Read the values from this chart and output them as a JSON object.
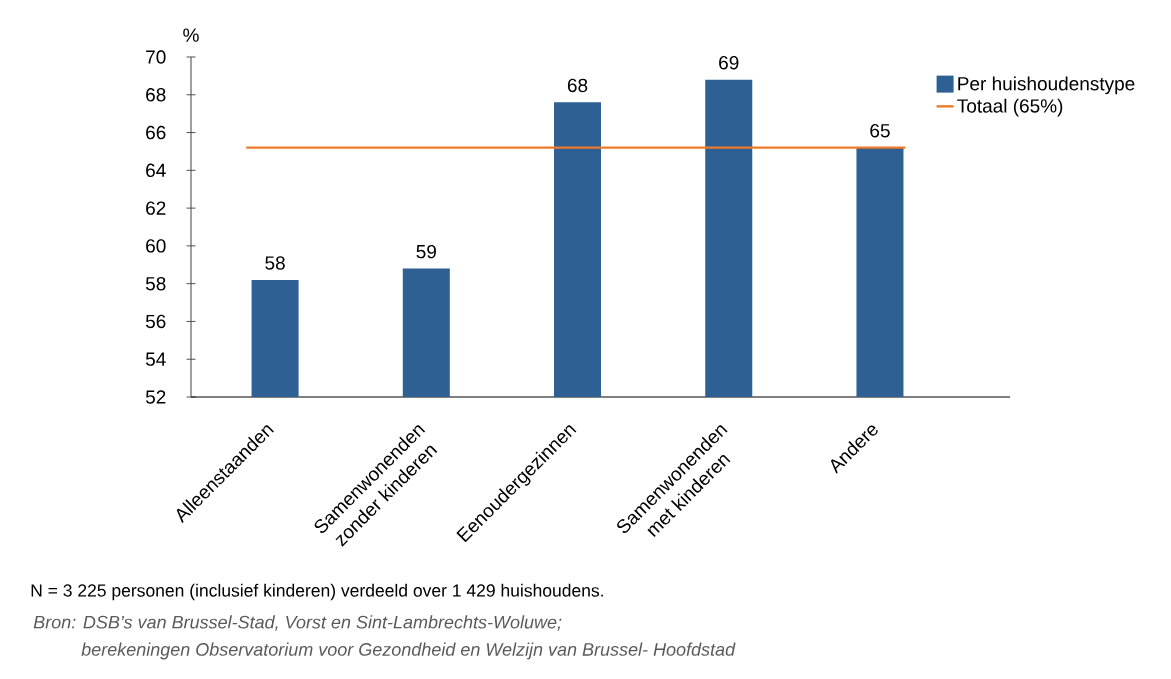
{
  "chart_data": {
    "type": "bar",
    "ylabel": "%",
    "categories": [
      "Alleenstaanden",
      "Samenwonenden zonder kinderen",
      "Eenoudergezinnen",
      "Samenwonenden met kinderen",
      "Andere"
    ],
    "series": [
      {
        "name": "Per huishoudenstype",
        "color": "#2e6094",
        "values": [
          58.2,
          58.8,
          67.6,
          68.8,
          65.2
        ],
        "value_labels": [
          "58",
          "59",
          "68",
          "69",
          "65"
        ]
      }
    ],
    "ylim": [
      52,
      70
    ],
    "yticks": [
      52,
      54,
      56,
      58,
      60,
      62,
      64,
      66,
      68,
      70
    ],
    "ref_lines": [
      {
        "axis": "y",
        "value": 65.2,
        "label": "Totaal (65%)",
        "color": "#ec7a2a"
      }
    ],
    "legend": "top right",
    "annotations": [
      "N = 3 225 personen (inclusief kinderen) verdeeld over 1 429 huishoudens.",
      "Bron: DSB’s van Brussel-Stad, Vorst en Sint-Lambrechts-Woluwe;",
      "berekeningen Observatorium voor Gezondheid en Welzijn van Brussel- Hoofdstad"
    ]
  }
}
